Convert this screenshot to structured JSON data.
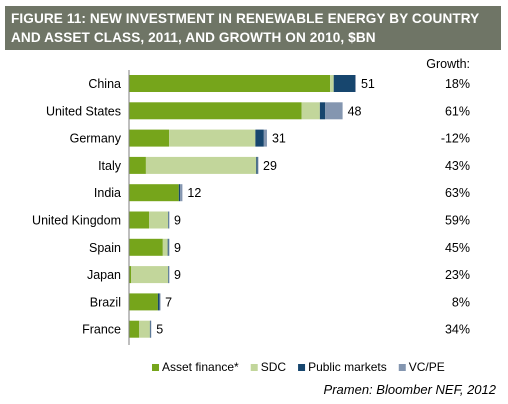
{
  "title_lines": [
    "FIGURE 11: NEW INVESTMENT IN RENEWABLE ENERGY BY COUNTRY",
    "AND ASSET CLASS, 2011, AND GROWTH ON 2010, $BN"
  ],
  "source": "Pramen: Bloomber NEF, 2012",
  "growth_header": "Growth:",
  "chart_data": {
    "type": "bar",
    "orientation": "horizontal",
    "stacked": true,
    "title": "FIGURE 11: NEW INVESTMENT IN RENEWABLE ENERGY BY COUNTRY AND ASSET CLASS, 2011, AND GROWTH ON 2010, $BN",
    "categories": [
      "China",
      "United States",
      "Germany",
      "Italy",
      "India",
      "United Kingdom",
      "Spain",
      "Japan",
      "Brazil",
      "France"
    ],
    "series": [
      {
        "name": "Asset finance*",
        "color": "#76a51b",
        "values": [
          45.2,
          38.8,
          9.0,
          3.8,
          11.2,
          4.5,
          7.6,
          0.5,
          6.5,
          2.3
        ]
      },
      {
        "name": "SDC",
        "color": "#c2d69b",
        "values": [
          0.8,
          4.1,
          19.4,
          24.8,
          0.0,
          4.3,
          1.1,
          8.3,
          0.0,
          2.4
        ]
      },
      {
        "name": "Public markets",
        "color": "#17466e",
        "values": [
          4.8,
          1.2,
          1.9,
          0.3,
          0.3,
          0.1,
          0.2,
          0.1,
          0.4,
          0.1
        ]
      },
      {
        "name": "VC/PE",
        "color": "#8496b0",
        "values": [
          0.2,
          3.9,
          0.7,
          0.1,
          0.5,
          0.1,
          0.1,
          0.1,
          0.1,
          0.2
        ]
      }
    ],
    "totals": [
      "51",
      "48",
      "31",
      "29",
      "12",
      "9",
      "9",
      "9",
      "7",
      "5"
    ],
    "growth": [
      "18%",
      "61%",
      "-12%",
      "43%",
      "63%",
      "59%",
      "45%",
      "23%",
      "8%",
      "34%"
    ],
    "xlim": [
      0,
      51
    ],
    "grid": false,
    "legend_position": "bottom"
  }
}
